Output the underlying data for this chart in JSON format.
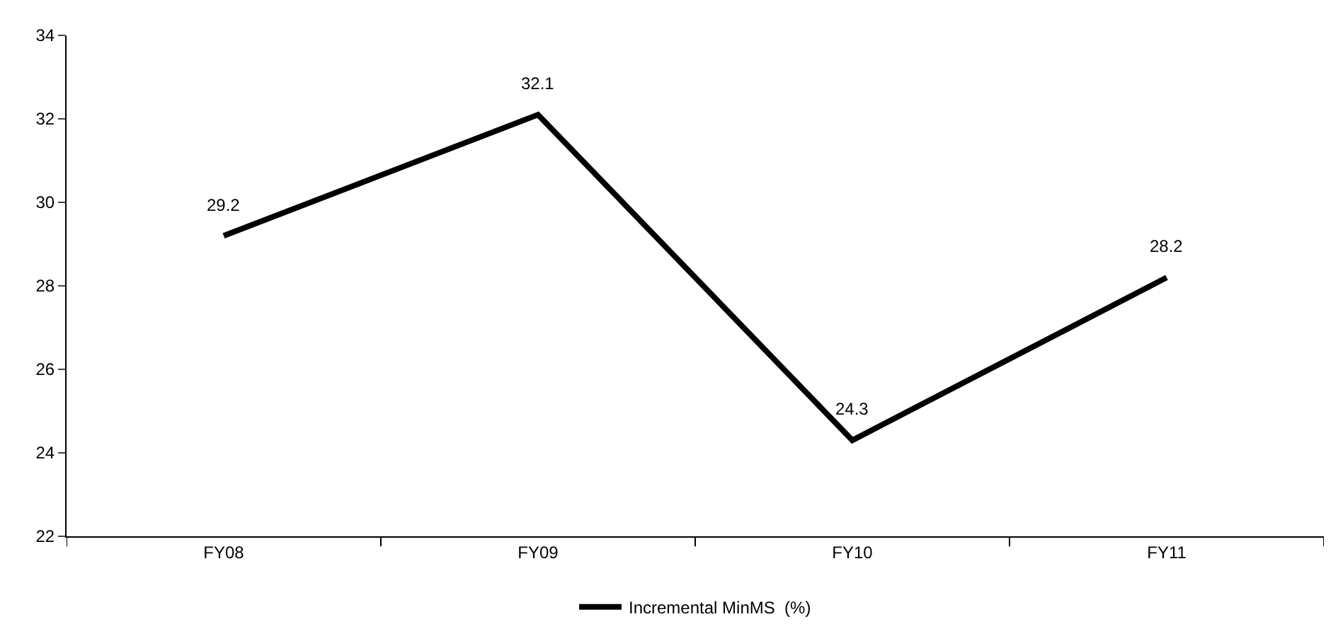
{
  "chart_data": {
    "type": "line",
    "categories": [
      "FY08",
      "FY09",
      "FY10",
      "FY11"
    ],
    "series": [
      {
        "name": "Incremental MinMS  (%)",
        "color": "#000000",
        "values": [
          29.2,
          32.1,
          24.3,
          28.2
        ]
      }
    ],
    "ylim": [
      22,
      34
    ],
    "yticks": [
      22,
      24,
      26,
      28,
      30,
      32,
      34
    ],
    "legend": "bottom",
    "data_labels": true,
    "marker": "none",
    "line_style": "solid"
  }
}
